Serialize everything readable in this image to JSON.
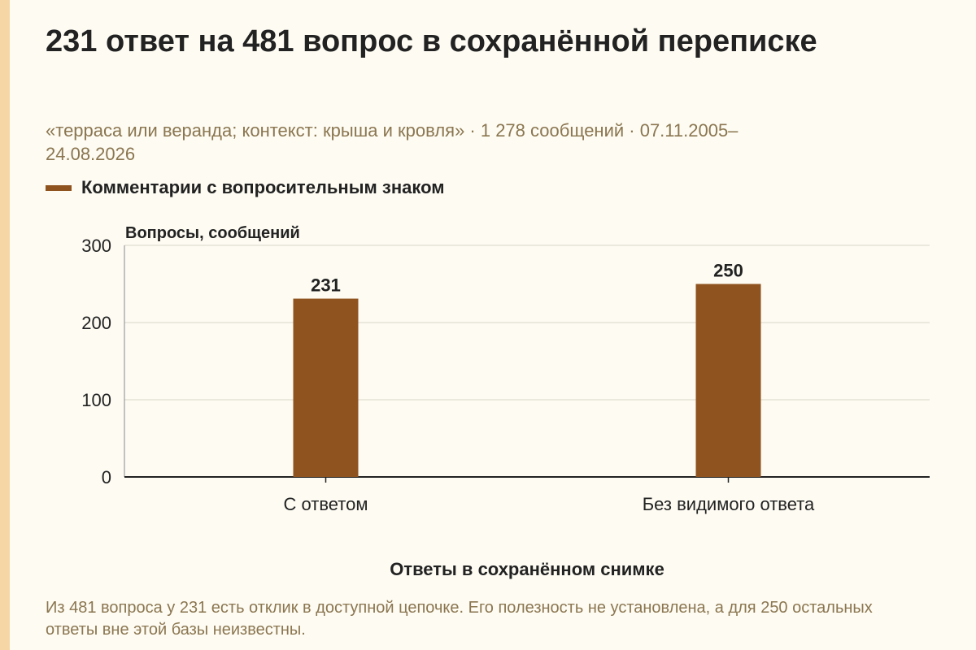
{
  "title": "231 ответ на 481 вопрос в сохранённой переписке",
  "subtitle": "«терраса или веранда; контекст: крыша и кровля» · 1 278 сообщений · 07.11.2005–24.08.2026",
  "footer": "Из 481 вопроса у 231 есть отклик в доступной цепочке. Его полезность не установлена, а для 250 остальных ответы вне этой базы неизвестны.",
  "colors": {
    "background": "#fdfbf2",
    "stripe": "#f5d6a4",
    "bar": "#8f531f",
    "grid": "#d9d5c8",
    "axis": "#222222",
    "muted_text": "#8b7650"
  },
  "chart_data": {
    "type": "bar",
    "title": "",
    "categories": [
      "С ответом",
      "Без видимого ответа"
    ],
    "series": [
      {
        "name": "Комментарии с вопросительным знаком",
        "values": [
          231,
          250
        ]
      }
    ],
    "data_labels": [
      "231",
      "250"
    ],
    "xlabel": "Ответы в сохранённом снимке",
    "ylabel": "Вопросы, сообщений",
    "ylim": [
      0,
      300
    ],
    "yticks": [
      0,
      100,
      200,
      300
    ],
    "grid": true,
    "legend_position": "top-left"
  }
}
